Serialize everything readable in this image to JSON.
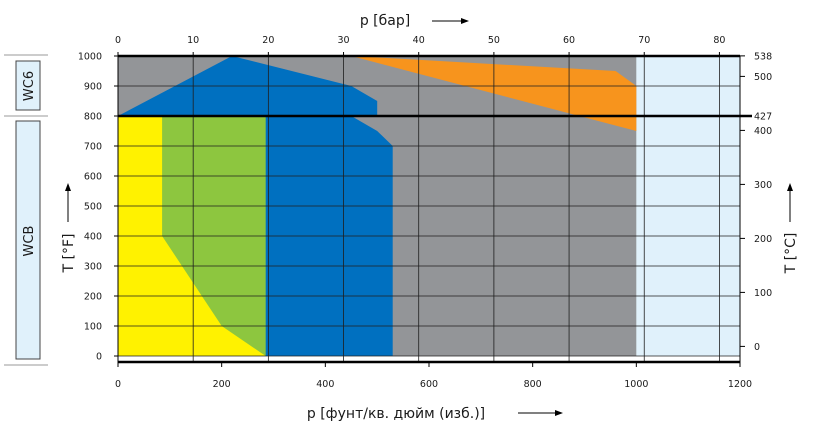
{
  "chart_data": {
    "type": "area",
    "title": "",
    "xlabel": "p [фунт/кв. дюйм (изб.)]",
    "x2label": "p [бар]",
    "ylabel": "T [°F]",
    "y2label": "T [°C]",
    "xlim": [
      0,
      1200
    ],
    "ylim": [
      -20,
      1000
    ],
    "x_ticks": [
      0,
      200,
      400,
      600,
      800,
      1000,
      1200
    ],
    "x2_ticks": [
      0,
      10,
      20,
      30,
      40,
      50,
      60,
      70,
      80
    ],
    "y_ticks": [
      0,
      100,
      200,
      300,
      400,
      500,
      600,
      700,
      800,
      900,
      1000
    ],
    "y2_ticks": [
      0,
      100,
      200,
      300,
      400,
      427,
      500,
      538
    ],
    "grid": true,
    "region_labels": {
      "upper": "WC6",
      "lower": "WCB"
    },
    "colors": {
      "yellow": "#FFF200",
      "green": "#8DC63F",
      "blue": "#0070C0",
      "gray": "#939598",
      "orange": "#F7941D",
      "light": "#E0F1FB"
    },
    "series": [
      {
        "color": "light",
        "x": [
          0,
          1200,
          1200,
          0
        ],
        "y": [
          0,
          0,
          1000,
          1000
        ]
      },
      {
        "color": "gray",
        "x": [
          0,
          1000,
          1000,
          0
        ],
        "y": [
          0,
          0,
          1000,
          1000
        ]
      },
      {
        "color": "orange",
        "x": [
          450,
          960,
          1000,
          1000
        ],
        "y": [
          1000,
          950,
          900,
          750
        ]
      },
      {
        "color": "blue",
        "x": [
          0,
          530,
          530,
          500,
          450,
          0
        ],
        "y": [
          0,
          0,
          700,
          750,
          800,
          800
        ]
      },
      {
        "color": "blue",
        "x": [
          0,
          220,
          450,
          500,
          500,
          0
        ],
        "y": [
          800,
          1000,
          900,
          850,
          800,
          800
        ]
      },
      {
        "color": "green",
        "x": [
          0,
          285,
          285,
          0
        ],
        "y": [
          0,
          0,
          800,
          800
        ]
      },
      {
        "color": "yellow",
        "x": [
          0,
          285,
          200,
          85,
          85,
          0
        ],
        "y": [
          0,
          0,
          100,
          400,
          800,
          800
        ]
      }
    ]
  }
}
